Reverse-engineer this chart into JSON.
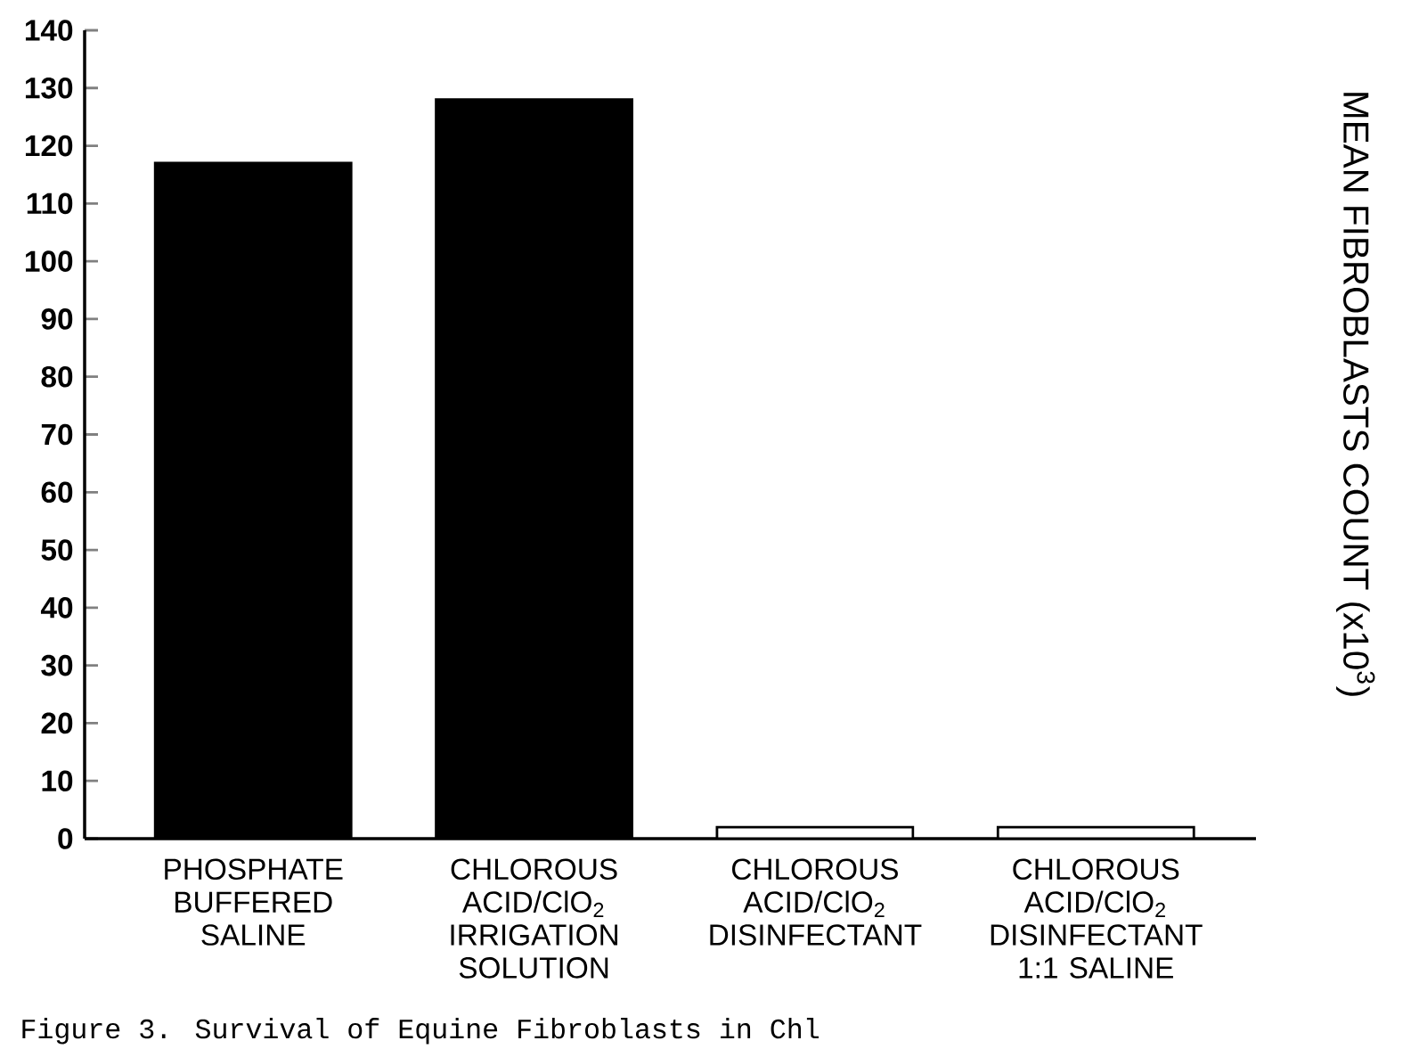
{
  "chart_data": {
    "type": "bar",
    "categories": [
      "PHOSPHATE BUFFERED SALINE",
      "CHLOROUS ACID/ClO$_{2}$ IRRIGATION SOLUTION",
      "CHLOROUS ACID/ClO$_{2}$ DISINFECTANT",
      "CHLOROUS ACID/ClO$_{2}$ DISINFECTANT 1:1 SALINE"
    ],
    "values": [
      117,
      128,
      2,
      2
    ],
    "colors": [
      "#000000",
      "#000000",
      "#ffffff",
      "#ffffff"
    ],
    "ylabel": "MEAN FIBROBLASTS COUNT (x10$^{3}$)",
    "ylim": [
      0,
      140
    ],
    "yticks": [
      0,
      10,
      20,
      30,
      40,
      50,
      60,
      70,
      80,
      90,
      100,
      110,
      120,
      130,
      140
    ],
    "grid": false,
    "annotations": [
      "Figure 3.  Survival of Equine Fibroblasts in Chl"
    ]
  }
}
